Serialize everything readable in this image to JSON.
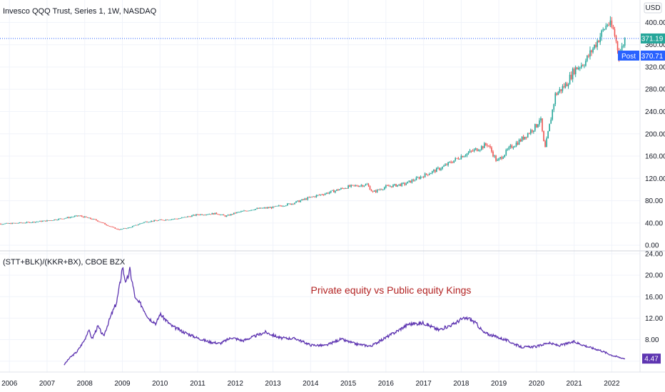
{
  "chart_data": [
    {
      "type": "candlestick",
      "title": "Invesco QQQ Trust, Series 1, 1W, NASDAQ",
      "currency": "USD",
      "ylim": [
        -5,
        430
      ],
      "y_ticks": [
        "0.00",
        "40.00",
        "80.00",
        "120.00",
        "160.00",
        "200.00",
        "240.00",
        "280.00",
        "320.00",
        "360.00",
        "400.00"
      ],
      "last_price": "371.19",
      "last_price_value": 371.19,
      "post_label": "Post",
      "post_price": "370.71",
      "up_color": "#26a69a",
      "down_color": "#ef5350",
      "price_line_color": "#2962ff",
      "x": [
        2005.5,
        2006.0,
        2006.5,
        2007.0,
        2007.5,
        2007.85,
        2008.3,
        2008.7,
        2008.9,
        2009.2,
        2009.6,
        2010.0,
        2010.5,
        2011.0,
        2011.5,
        2011.75,
        2012.0,
        2012.5,
        2013.0,
        2013.5,
        2014.0,
        2014.5,
        2015.0,
        2015.5,
        2015.65,
        2016.0,
        2016.5,
        2017.0,
        2017.5,
        2018.0,
        2018.5,
        2018.7,
        2018.95,
        2019.3,
        2019.6,
        2020.0,
        2020.1,
        2020.22,
        2020.5,
        2020.8,
        2021.0,
        2021.3,
        2021.6,
        2021.9,
        2022.05,
        2022.2,
        2022.35
      ],
      "close": [
        38,
        39,
        41,
        44,
        49,
        53,
        45,
        33,
        28,
        32,
        42,
        45,
        48,
        55,
        57,
        52,
        58,
        65,
        68,
        75,
        86,
        95,
        105,
        109,
        95,
        105,
        110,
        125,
        140,
        160,
        175,
        182,
        150,
        175,
        190,
        215,
        230,
        170,
        270,
        290,
        315,
        330,
        365,
        400,
        385,
        340,
        371
      ]
    },
    {
      "type": "line",
      "title": "(STT+BLK)/(KKR+BX), CBOE BZX",
      "annotation": "Private equity vs Public equity Kings",
      "ylim": [
        2.5,
        24
      ],
      "y_ticks": [
        "4.00",
        "8.00",
        "12.00",
        "16.00",
        "20.00",
        "24.00"
      ],
      "last_value": "4.47",
      "line_color": "#5e35b1",
      "x": [
        2007.45,
        2007.6,
        2007.8,
        2008.0,
        2008.1,
        2008.2,
        2008.35,
        2008.5,
        2008.6,
        2008.7,
        2008.85,
        2008.95,
        2009.0,
        2009.1,
        2009.2,
        2009.35,
        2009.5,
        2009.7,
        2009.9,
        2010.0,
        2010.3,
        2010.6,
        2011.0,
        2011.3,
        2011.6,
        2011.9,
        2012.2,
        2012.5,
        2012.8,
        2013.2,
        2013.6,
        2014.0,
        2014.4,
        2014.8,
        2015.2,
        2015.6,
        2016.0,
        2016.3,
        2016.6,
        2017.0,
        2017.4,
        2017.8,
        2018.0,
        2018.2,
        2018.4,
        2018.6,
        2018.9,
        2019.2,
        2019.6,
        2020.0,
        2020.3,
        2020.6,
        2021.0,
        2021.4,
        2021.7,
        2022.0,
        2022.2,
        2022.35
      ],
      "values": [
        3.3,
        4.6,
        5.8,
        8.0,
        9.8,
        8.2,
        10.5,
        8.6,
        10.6,
        12.5,
        15.0,
        19.0,
        21.6,
        18.5,
        21.0,
        15.5,
        14.5,
        12.0,
        11.0,
        12.8,
        10.6,
        9.5,
        8.3,
        7.6,
        7.3,
        8.4,
        7.8,
        8.6,
        9.4,
        8.3,
        8.2,
        7.0,
        6.9,
        8.1,
        7.2,
        6.8,
        8.4,
        9.6,
        10.9,
        11.1,
        9.8,
        10.9,
        11.8,
        12.0,
        11.0,
        9.3,
        8.6,
        7.9,
        6.6,
        6.7,
        7.4,
        6.9,
        7.6,
        6.6,
        6.0,
        5.1,
        4.7,
        4.47
      ]
    }
  ],
  "x_axis": {
    "labels": [
      "2006",
      "2007",
      "2008",
      "2009",
      "2010",
      "2011",
      "2012",
      "2013",
      "2014",
      "2015",
      "2016",
      "2017",
      "2018",
      "2019",
      "2020",
      "2021",
      "2022"
    ],
    "range": [
      2005.75,
      2022.75
    ]
  }
}
